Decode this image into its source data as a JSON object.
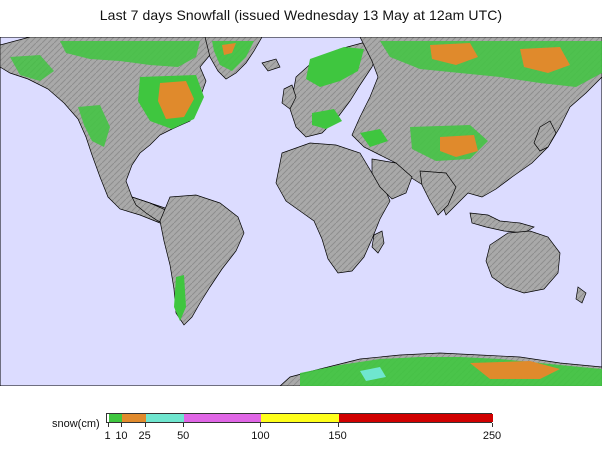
{
  "title": "Last 7 days Snowfall (issued Wednesday 13 May at 12am UTC)",
  "colors": {
    "ocean": "#dcdcff",
    "land": "#a9a9a9",
    "land_shade": "#8c8c8c",
    "coast": "#000000"
  },
  "legend": {
    "label": "snow(cm)",
    "max_value": 250,
    "segments": [
      {
        "from": 1,
        "to": 10,
        "color": "#3fc63f"
      },
      {
        "from": 10,
        "to": 25,
        "color": "#e08a2c"
      },
      {
        "from": 25,
        "to": 50,
        "color": "#6fe6cf"
      },
      {
        "from": 50,
        "to": 100,
        "color": "#e066e6"
      },
      {
        "from": 100,
        "to": 150,
        "color": "#ffff1a"
      },
      {
        "from": 150,
        "to": 250,
        "color": "#d00000"
      }
    ],
    "ticks": [
      "1",
      "10",
      "25",
      "50",
      "100",
      "150",
      "250"
    ]
  }
}
